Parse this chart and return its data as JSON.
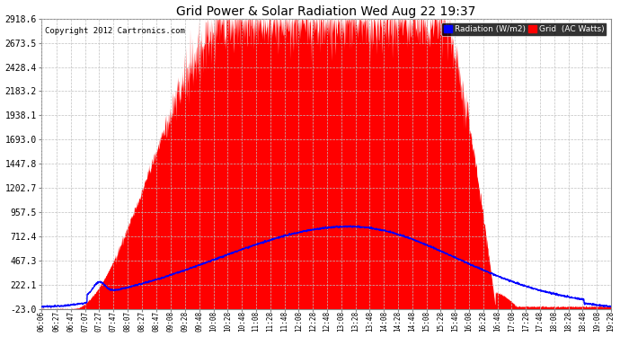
{
  "title": "Grid Power & Solar Radiation Wed Aug 22 19:37",
  "copyright": "Copyright 2012 Cartronics.com",
  "yticks": [
    2918.6,
    2673.5,
    2428.4,
    2183.2,
    1938.1,
    1693.0,
    1447.8,
    1202.7,
    957.5,
    712.4,
    467.3,
    222.1,
    -23.0
  ],
  "ymin": -23.0,
  "ymax": 2918.6,
  "bg_color": "#ffffff",
  "plot_bg_color": "#ffffff",
  "grid_color": "#c0c0c0",
  "fill_color": "#ff0000",
  "line_color": "#0000ff",
  "legend_rad_bg": "#0000ff",
  "legend_rad_text": "Radiation (W/m2)",
  "legend_grid_bg": "#ff0000",
  "legend_grid_text": "Grid  (AC Watts)",
  "xtick_labels": [
    "06:06",
    "06:27",
    "06:47",
    "07:07",
    "07:27",
    "07:47",
    "08:07",
    "08:27",
    "08:47",
    "09:08",
    "09:28",
    "09:48",
    "10:08",
    "10:28",
    "10:48",
    "11:08",
    "11:28",
    "11:48",
    "12:08",
    "12:28",
    "12:48",
    "13:08",
    "13:28",
    "13:48",
    "14:08",
    "14:28",
    "14:48",
    "15:08",
    "15:28",
    "15:48",
    "16:08",
    "16:28",
    "16:48",
    "17:08",
    "17:28",
    "17:48",
    "18:08",
    "18:28",
    "18:48",
    "19:08",
    "19:28"
  ]
}
